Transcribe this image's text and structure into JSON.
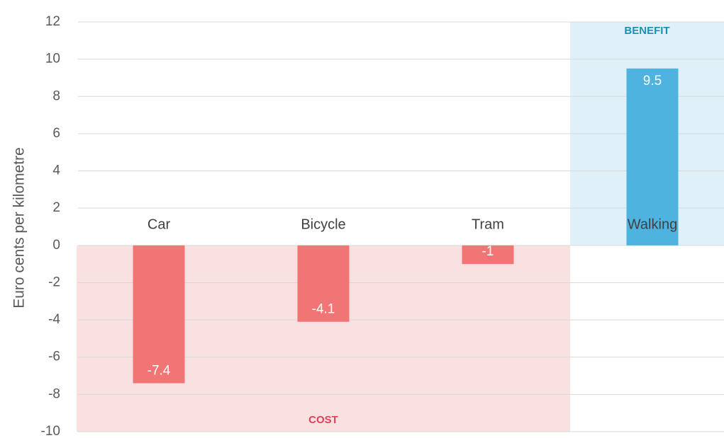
{
  "chart_data": {
    "type": "bar",
    "y_label": "Euro cents per kilometre",
    "categories": [
      "Car",
      "Bicycle",
      "Tram",
      "Walking"
    ],
    "values": [
      -7.4,
      -4.1,
      -1,
      9.5
    ],
    "colors": [
      "#f27575",
      "#f27575",
      "#f27575",
      "#4fb3e0"
    ],
    "ylim": [
      -10,
      12
    ],
    "yticks": [
      -10,
      -8,
      -6,
      -4,
      -2,
      0,
      2,
      4,
      6,
      8,
      10,
      12
    ],
    "grid": true,
    "annotations": [
      {
        "text": "BENEFIT",
        "color": "#1a8fb5"
      },
      {
        "text": "COST",
        "color": "#e0405a"
      }
    ]
  }
}
